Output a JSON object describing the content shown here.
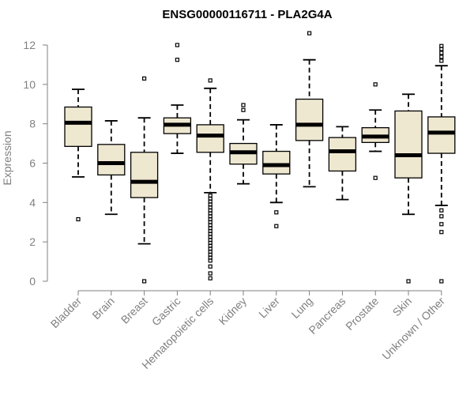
{
  "chart_data": {
    "type": "box",
    "title": "ENSG00000116711 - PLA2G4A",
    "xlabel": "",
    "ylabel": "Expression",
    "ylim": [
      0,
      12
    ],
    "yticks": [
      0,
      2,
      4,
      6,
      8,
      10,
      12
    ],
    "colors": {
      "box_fill": "#efe8d0",
      "axis": "#808080",
      "stroke": "#000000",
      "text": "#808080"
    },
    "categories": [
      "Bladder",
      "Brain",
      "Breast",
      "Gastric",
      "Hematopoietic cells",
      "Kidney",
      "Liver",
      "Lung",
      "Pancreas",
      "Prostate",
      "Skin",
      "Unknown / Other"
    ],
    "boxes": [
      {
        "name": "Bladder",
        "whisker_low": 5.3,
        "q1": 6.85,
        "median": 8.05,
        "q3": 8.85,
        "whisker_high": 9.75,
        "outliers": [
          3.15
        ]
      },
      {
        "name": "Brain",
        "whisker_low": 3.4,
        "q1": 5.4,
        "median": 6.0,
        "q3": 6.95,
        "whisker_high": 8.15,
        "outliers": []
      },
      {
        "name": "Breast",
        "whisker_low": 1.9,
        "q1": 4.25,
        "median": 5.05,
        "q3": 6.55,
        "whisker_high": 8.3,
        "outliers": [
          0.0,
          10.3
        ]
      },
      {
        "name": "Gastric",
        "whisker_low": 6.5,
        "q1": 7.5,
        "median": 7.95,
        "q3": 8.3,
        "whisker_high": 8.95,
        "outliers": [
          11.25,
          12.0
        ]
      },
      {
        "name": "Hematopoietic cells",
        "whisker_low": 4.5,
        "q1": 6.55,
        "median": 7.4,
        "q3": 7.95,
        "whisker_high": 9.8,
        "outliers": [
          10.2,
          4.35,
          4.2,
          4.05,
          3.9,
          3.75,
          3.6,
          3.45,
          3.3,
          3.15,
          3.0,
          2.85,
          2.7,
          2.55,
          2.4,
          2.25,
          2.1,
          1.95,
          1.8,
          1.65,
          1.5,
          1.35,
          1.2,
          1.05,
          0.75,
          0.4,
          0.15
        ]
      },
      {
        "name": "Kidney",
        "whisker_low": 4.95,
        "q1": 5.95,
        "median": 6.55,
        "q3": 7.0,
        "whisker_high": 8.2,
        "outliers": [
          8.7,
          8.95
        ]
      },
      {
        "name": "Liver",
        "whisker_low": 4.0,
        "q1": 5.45,
        "median": 5.9,
        "q3": 6.6,
        "whisker_high": 7.95,
        "outliers": [
          3.5,
          2.8
        ]
      },
      {
        "name": "Lung",
        "whisker_low": 4.8,
        "q1": 7.15,
        "median": 7.95,
        "q3": 9.25,
        "whisker_high": 11.25,
        "outliers": [
          12.6
        ]
      },
      {
        "name": "Pancreas",
        "whisker_low": 4.15,
        "q1": 5.6,
        "median": 6.6,
        "q3": 7.3,
        "whisker_high": 7.85,
        "outliers": []
      },
      {
        "name": "Prostate",
        "whisker_low": 6.6,
        "q1": 7.05,
        "median": 7.35,
        "q3": 7.8,
        "whisker_high": 8.7,
        "outliers": [
          10.0,
          5.25
        ]
      },
      {
        "name": "Skin",
        "whisker_low": 3.4,
        "q1": 5.25,
        "median": 6.4,
        "q3": 8.65,
        "whisker_high": 9.5,
        "outliers": [
          0.0
        ]
      },
      {
        "name": "Unknown / Other",
        "whisker_low": 3.85,
        "q1": 6.5,
        "median": 7.55,
        "q3": 8.35,
        "whisker_high": 10.95,
        "outliers": [
          11.2,
          11.4,
          11.6,
          11.8,
          11.95,
          3.6,
          3.3,
          2.9,
          2.5,
          0.0
        ]
      }
    ]
  }
}
